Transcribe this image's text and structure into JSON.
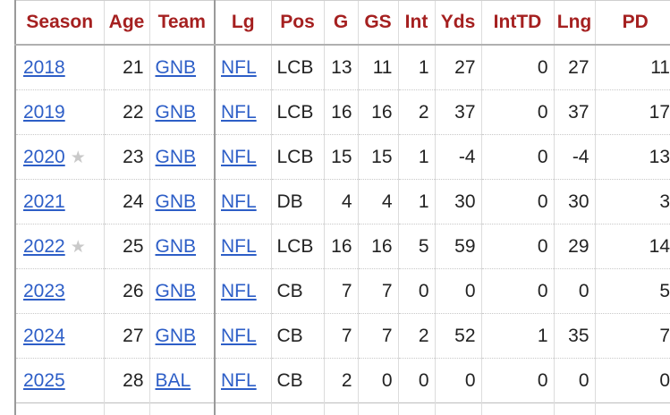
{
  "columns": [
    "Season",
    "Age",
    "Team",
    "Lg",
    "Pos",
    "G",
    "GS",
    "Int",
    "Yds",
    "IntTD",
    "Lng",
    "PD"
  ],
  "rows": [
    {
      "season": "2018",
      "star": "",
      "age": "21",
      "team": "GNB",
      "lg": "NFL",
      "pos": "LCB",
      "g": "13",
      "gs": "11",
      "int": "1",
      "yds": "27",
      "inttd": "0",
      "lng": "27",
      "pd": "11"
    },
    {
      "season": "2019",
      "star": "",
      "age": "22",
      "team": "GNB",
      "lg": "NFL",
      "pos": "LCB",
      "g": "16",
      "gs": "16",
      "int": "2",
      "yds": "37",
      "inttd": "0",
      "lng": "37",
      "pd": "17"
    },
    {
      "season": "2020",
      "star": "★",
      "age": "23",
      "team": "GNB",
      "lg": "NFL",
      "pos": "LCB",
      "g": "15",
      "gs": "15",
      "int": "1",
      "yds": "-4",
      "inttd": "0",
      "lng": "-4",
      "pd": "13"
    },
    {
      "season": "2021",
      "star": "",
      "age": "24",
      "team": "GNB",
      "lg": "NFL",
      "pos": "DB",
      "g": "4",
      "gs": "4",
      "int": "1",
      "yds": "30",
      "inttd": "0",
      "lng": "30",
      "pd": "3"
    },
    {
      "season": "2022",
      "star": "★",
      "age": "25",
      "team": "GNB",
      "lg": "NFL",
      "pos": "LCB",
      "g": "16",
      "gs": "16",
      "int": "5",
      "yds": "59",
      "inttd": "0",
      "lng": "29",
      "pd": "14"
    },
    {
      "season": "2023",
      "star": "",
      "age": "26",
      "team": "GNB",
      "lg": "NFL",
      "pos": "CB",
      "g": "7",
      "gs": "7",
      "int": "0",
      "yds": "0",
      "inttd": "0",
      "lng": "0",
      "pd": "5"
    },
    {
      "season": "2024",
      "star": "",
      "age": "27",
      "team": "GNB",
      "lg": "NFL",
      "pos": "CB",
      "g": "7",
      "gs": "7",
      "int": "2",
      "yds": "52",
      "inttd": "1",
      "lng": "35",
      "pd": "7"
    },
    {
      "season": "2025",
      "star": "",
      "age": "28",
      "team": "BAL",
      "lg": "NFL",
      "pos": "CB",
      "g": "2",
      "gs": "0",
      "int": "0",
      "yds": "0",
      "inttd": "0",
      "lng": "0",
      "pd": "0"
    }
  ],
  "colors": {
    "header_text": "#a52020",
    "link": "#2d5ec7",
    "star": "#c9c9c9"
  }
}
